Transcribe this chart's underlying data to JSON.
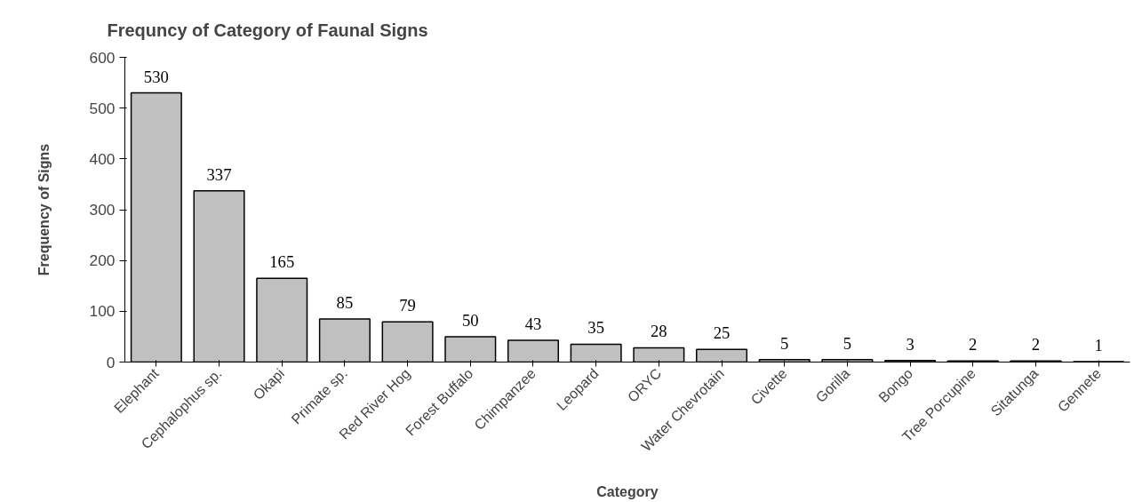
{
  "chart_data": {
    "type": "bar",
    "title": "Frequncy of Category of Faunal Signs",
    "xlabel": "Category",
    "ylabel": "Frequency of Signs",
    "categories": [
      "Elephant",
      "Cephalophus sp.",
      "Okapi",
      "Primate sp.",
      "Red River Hog",
      "Forest Buffalo",
      "Chimpanzee",
      "Leopard",
      "ORYC",
      "Water Chevrotain",
      "Civette",
      "Gorilla",
      "Bongo",
      "Tree Porcupine",
      "Sitatunga",
      "Gennete"
    ],
    "values": [
      530,
      337,
      165,
      85,
      79,
      50,
      43,
      35,
      28,
      25,
      5,
      5,
      3,
      2,
      2,
      1
    ],
    "color": "#c0c0c0",
    "ylim": [
      0,
      600
    ],
    "yticks": [
      0,
      100,
      200,
      300,
      400,
      500,
      600
    ],
    "grid": false,
    "data_labels": true
  }
}
